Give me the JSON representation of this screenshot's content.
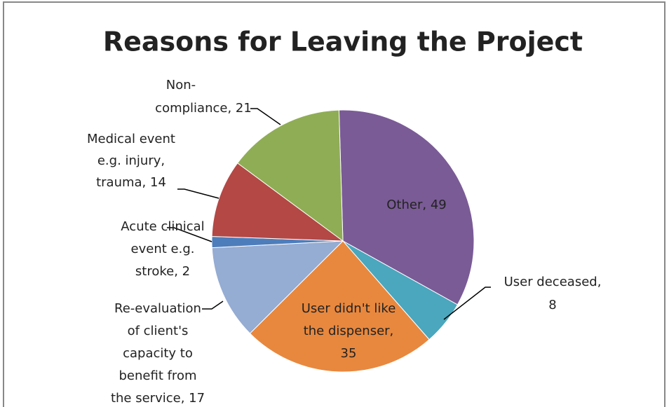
{
  "chart_data": {
    "type": "pie",
    "title": "Reasons for Leaving the Project",
    "values": [
      49,
      8,
      35,
      17,
      2,
      14,
      21
    ],
    "labels": [
      [
        "Other, 49"
      ],
      [
        "User deceased,",
        "8"
      ],
      [
        "User didn't like",
        "the dispenser,",
        "35"
      ],
      [
        "Re-evaluation",
        "of client's",
        "capacity to",
        "benefit from",
        "the service, 17"
      ],
      [
        "Acute clinical",
        "event e.g.",
        "stroke, 2"
      ],
      [
        "Medical event",
        "e.g. injury,",
        "trauma, 14"
      ],
      [
        "Non-",
        "compliance, 21"
      ]
    ],
    "colors": [
      "#7a5b96",
      "#4aa7bd",
      "#e8883e",
      "#95acd3",
      "#4d7dbb",
      "#b34845",
      "#8fad55"
    ]
  }
}
